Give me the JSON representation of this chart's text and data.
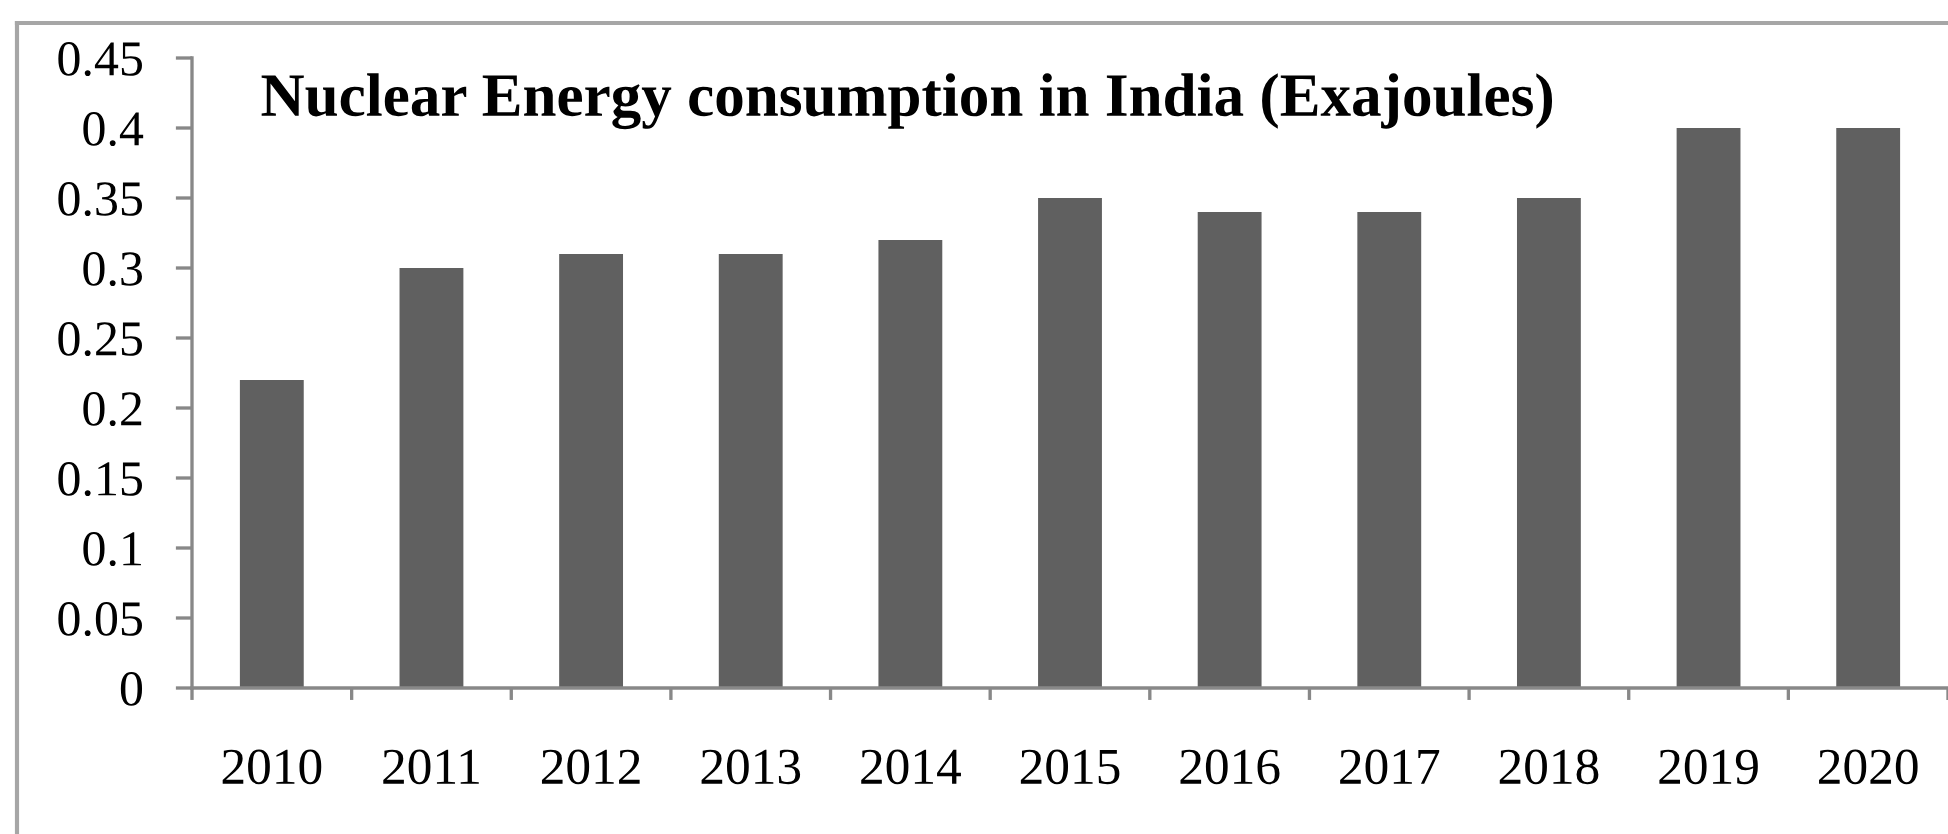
{
  "chart_data": {
    "type": "bar",
    "title": "Nuclear Energy consumption in India (Exajoules)",
    "categories": [
      "2010",
      "2011",
      "2012",
      "2013",
      "2014",
      "2015",
      "2016",
      "2017",
      "2018",
      "2019",
      "2020"
    ],
    "values": [
      0.22,
      0.3,
      0.31,
      0.31,
      0.32,
      0.35,
      0.34,
      0.34,
      0.35,
      0.4,
      0.4
    ],
    "color": "#606060",
    "ylim": [
      0,
      0.45
    ],
    "yticks": [
      0,
      0.05,
      0.1,
      0.15,
      0.2,
      0.25,
      0.3,
      0.35,
      0.4,
      0.45
    ],
    "grid": false
  }
}
